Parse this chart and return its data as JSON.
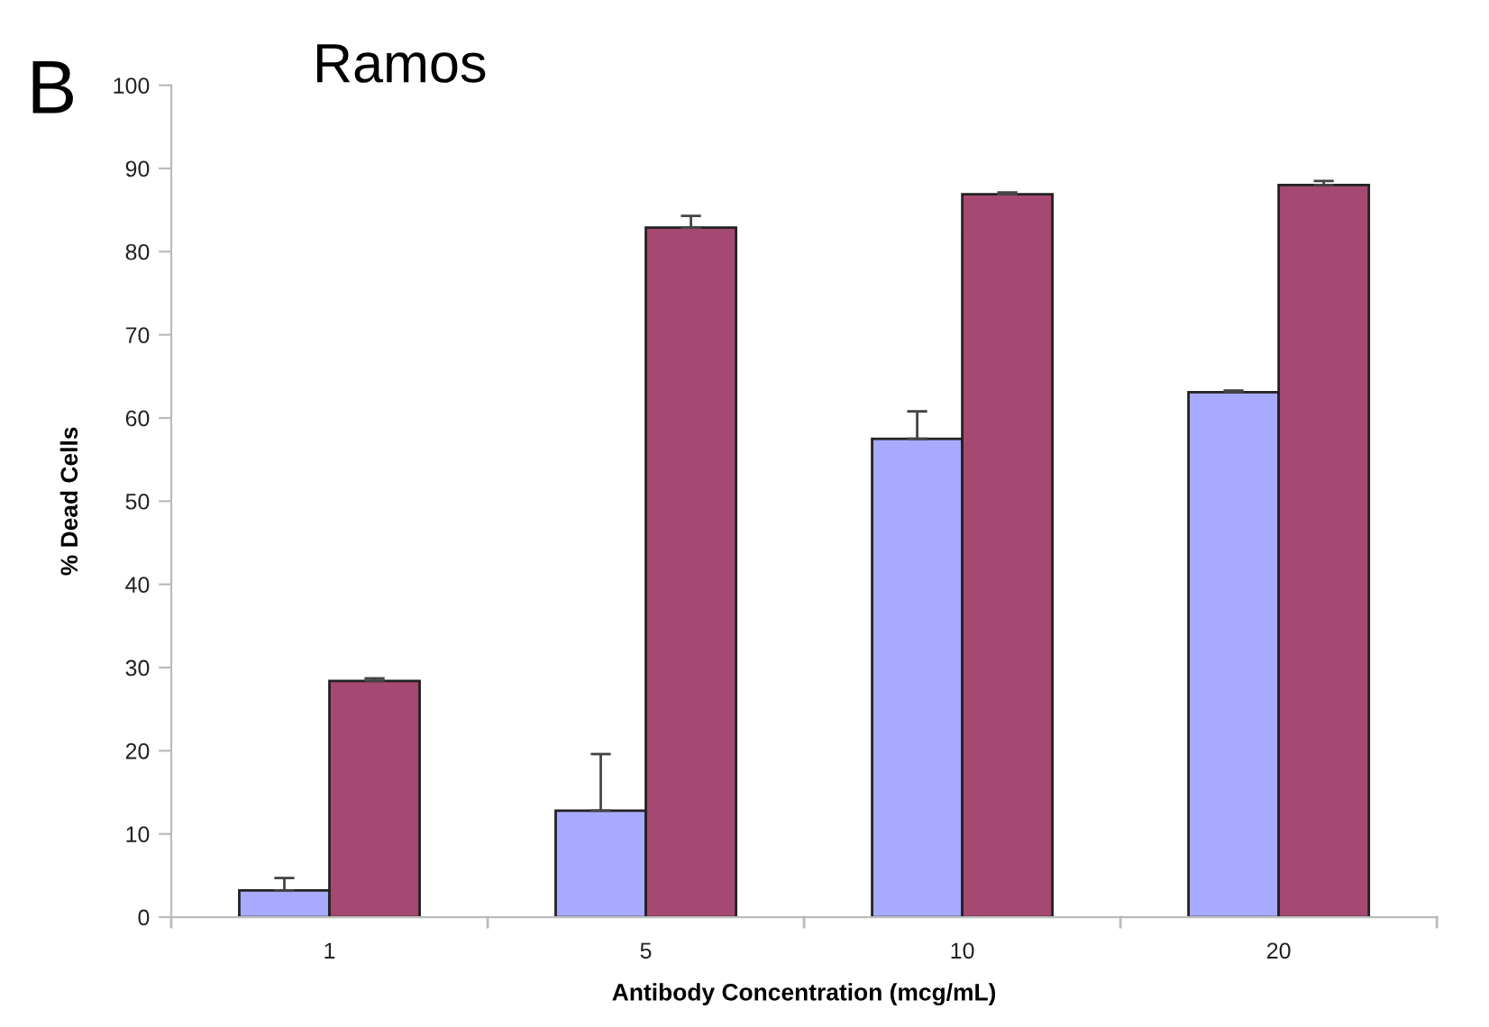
{
  "chart_data": {
    "type": "bar",
    "title": "Ramos",
    "annotations": [
      "B"
    ],
    "xlabel": "Antibody Concentration (mcg/mL)",
    "ylabel": "% Dead Cells",
    "categories": [
      "1",
      "5",
      "10",
      "20"
    ],
    "series": [
      {
        "color": "#a8aaff",
        "values": [
          3.2,
          12.8,
          57.5,
          63.1
        ],
        "errors": [
          [
            3.2,
            4.7
          ],
          [
            12.8,
            19.6
          ],
          [
            57.5,
            60.8
          ],
          [
            63.1,
            63.3
          ]
        ]
      },
      {
        "color": "#a54872",
        "values": [
          28.4,
          82.9,
          86.9,
          88.0
        ],
        "errors": [
          [
            28.4,
            28.7
          ],
          [
            82.9,
            84.3
          ],
          [
            86.9,
            87.1
          ],
          [
            88.0,
            88.5
          ]
        ]
      }
    ],
    "ylim": [
      0,
      100
    ],
    "yticks": [
      0,
      10,
      20,
      30,
      40,
      50,
      60,
      70,
      80,
      90,
      100
    ],
    "grid": false,
    "legend": false
  }
}
